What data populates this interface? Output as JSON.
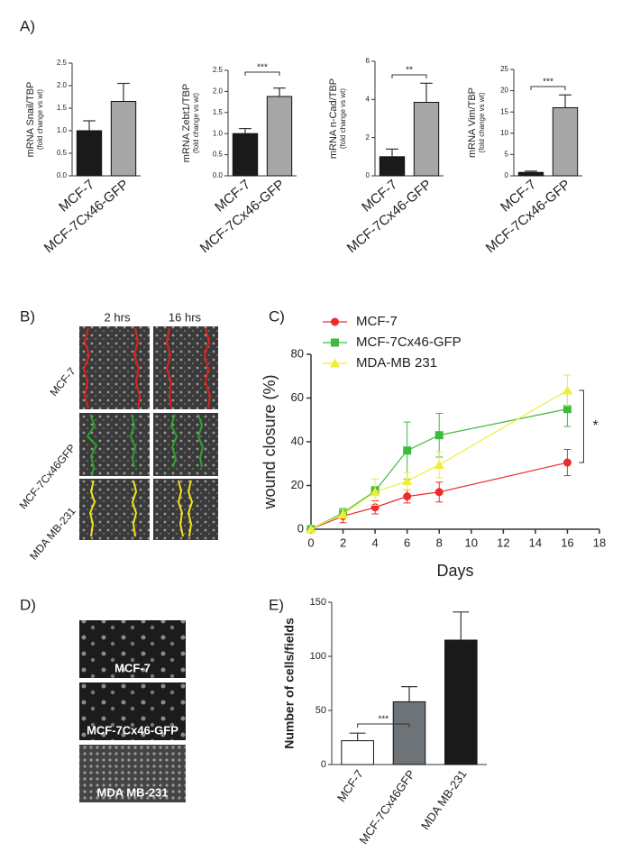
{
  "panel_labels": [
    "A)",
    "B)",
    "C)",
    "D)",
    "E)"
  ],
  "wound_images": {
    "columns": [
      "2 hrs",
      "16 hrs"
    ],
    "rows": [
      "MCF-7",
      "MCF-7Cx46GFP",
      "MDA MB-231"
    ]
  },
  "cell_images": {
    "labels": [
      "MCF-7",
      "MCF-7Cx46-GFP",
      "MDA MB-231"
    ]
  },
  "chart_data": [
    {
      "type": "bar",
      "ylabel": "mRNA Snail/TBP",
      "ylabel_sub": "(fold change vs wt)",
      "categories": [
        "MCF-7",
        "MCF-7Cx46-GFP"
      ],
      "values": [
        1.0,
        1.65
      ],
      "errors": [
        0.22,
        0.4
      ],
      "colors": [
        "#1a1a1a",
        "#a6a6a6"
      ],
      "ylim": [
        0,
        2.5
      ],
      "yticks": [
        {
          "value": 0,
          "label": "0.0"
        },
        {
          "value": 0.5,
          "label": "0.5"
        },
        {
          "value": 1,
          "label": "1.0"
        },
        {
          "value": 1.5,
          "label": "1.5"
        },
        {
          "value": 2,
          "label": "2.0"
        },
        {
          "value": 2.5,
          "label": "2.5"
        }
      ]
    },
    {
      "type": "bar",
      "ylabel": "mRNA Zebt1/TBP",
      "ylabel_sub": "(fold change vs wt)",
      "categories": [
        "MCF-7",
        "MCF-7Cx46-GFP"
      ],
      "values": [
        1.0,
        1.88
      ],
      "errors": [
        0.12,
        0.2
      ],
      "colors": [
        "#1a1a1a",
        "#a6a6a6"
      ],
      "ylim": [
        0,
        2.5
      ],
      "yticks": [
        {
          "value": 0,
          "label": "0.0"
        },
        {
          "value": 0.5,
          "label": "0.5"
        },
        {
          "value": 1,
          "label": "1.0"
        },
        {
          "value": 1.5,
          "label": "1.5"
        },
        {
          "value": 2,
          "label": "2.0"
        },
        {
          "value": 2.5,
          "label": "2.5"
        }
      ],
      "annotation": "***"
    },
    {
      "type": "bar",
      "ylabel": "mRNA n-Cad/TBP",
      "ylabel_sub": "(fold change vs wt)",
      "categories": [
        "MCF-7",
        "MCF-7Cx46-GFP"
      ],
      "values": [
        1.0,
        3.85
      ],
      "errors": [
        0.4,
        1.0
      ],
      "colors": [
        "#1a1a1a",
        "#a6a6a6"
      ],
      "ylim": [
        0,
        6
      ],
      "yticks": [
        0,
        2,
        4,
        6
      ],
      "annotation": "**"
    },
    {
      "type": "bar",
      "ylabel": "mRNA Vim/TBP",
      "ylabel_sub": "(fold change vs wt)",
      "categories": [
        "MCF-7",
        "MCF-7Cx46-GFP"
      ],
      "values": [
        0.8,
        16
      ],
      "errors": [
        0.3,
        3
      ],
      "colors": [
        "#1a1a1a",
        "#a6a6a6"
      ],
      "ylim": [
        0,
        25
      ],
      "yticks": [
        0,
        5,
        10,
        15,
        20,
        25
      ],
      "annotation": "***"
    },
    {
      "type": "line",
      "xlabel": "Days",
      "ylabel": "wound closure (%)",
      "x": [
        0,
        2,
        4,
        6,
        8,
        16
      ],
      "series": [
        {
          "name": "MCF-7",
          "color": "#ee2b2b",
          "marker": "circle",
          "values": [
            0,
            6,
            10,
            15,
            17,
            30.5
          ],
          "errors": [
            0,
            3,
            3,
            3,
            4.5,
            6
          ]
        },
        {
          "name": "MCF-7Cx46-GFP",
          "color": "#3dbb3d",
          "marker": "square",
          "values": [
            0,
            7.5,
            17.5,
            36,
            43,
            55
          ],
          "errors": [
            0,
            2,
            2,
            13,
            10,
            8
          ]
        },
        {
          "name": "MDA-MB 231",
          "color": "#eeee3a",
          "marker": "triangle",
          "values": [
            0,
            7,
            17,
            22,
            29.5,
            63.5
          ],
          "errors": [
            0,
            2,
            6,
            4,
            6,
            7
          ]
        }
      ],
      "xlim": [
        0,
        18
      ],
      "xticks": [
        0,
        2,
        4,
        6,
        8,
        10,
        12,
        14,
        16,
        18
      ],
      "ylim": [
        0,
        80
      ],
      "yticks": [
        0,
        20,
        40,
        60,
        80
      ],
      "legend": "top-left",
      "annotation": "*"
    },
    {
      "type": "bar",
      "ylabel": "Number of cells/fields",
      "categories": [
        "MCF-7",
        "MCF-7Cx46GFP",
        "MDA MB-231"
      ],
      "values": [
        22,
        58,
        115
      ],
      "errors": [
        7,
        14,
        26
      ],
      "colors": [
        "#ffffff",
        "#6e7378",
        "#1a1a1a"
      ],
      "ylim": [
        0,
        150
      ],
      "yticks": [
        0,
        50,
        100,
        150
      ],
      "annotation": "***"
    }
  ]
}
